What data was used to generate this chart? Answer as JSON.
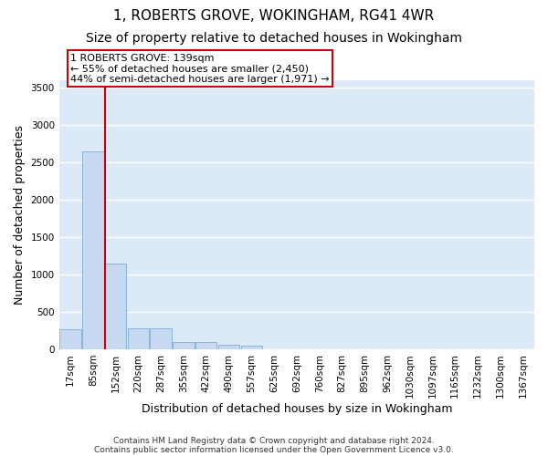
{
  "title": "1, ROBERTS GROVE, WOKINGHAM, RG41 4WR",
  "subtitle": "Size of property relative to detached houses in Wokingham",
  "xlabel": "Distribution of detached houses by size in Wokingham",
  "ylabel": "Number of detached properties",
  "footnote1": "Contains HM Land Registry data © Crown copyright and database right 2024.",
  "footnote2": "Contains public sector information licensed under the Open Government Licence v3.0.",
  "categories": [
    "17sqm",
    "85sqm",
    "152sqm",
    "220sqm",
    "287sqm",
    "355sqm",
    "422sqm",
    "490sqm",
    "557sqm",
    "625sqm",
    "692sqm",
    "760sqm",
    "827sqm",
    "895sqm",
    "962sqm",
    "1030sqm",
    "1097sqm",
    "1165sqm",
    "1232sqm",
    "1300sqm",
    "1367sqm"
  ],
  "values": [
    270,
    2650,
    1150,
    275,
    275,
    100,
    95,
    55,
    50,
    0,
    0,
    0,
    0,
    0,
    0,
    0,
    0,
    0,
    0,
    0,
    0
  ],
  "bar_color": "#c6d9f0",
  "bar_edge_color": "#7bafd4",
  "background_color": "#dce9f7",
  "grid_color": "#ffffff",
  "annotation_line1": "1 ROBERTS GROVE: 139sqm",
  "annotation_line2": "← 55% of detached houses are smaller (2,450)",
  "annotation_line3": "44% of semi-detached houses are larger (1,971) →",
  "annotation_box_color": "#cc0000",
  "red_line_x": 1.55,
  "ylim": [
    0,
    3600
  ],
  "yticks": [
    0,
    500,
    1000,
    1500,
    2000,
    2500,
    3000,
    3500
  ],
  "title_fontsize": 11,
  "subtitle_fontsize": 10,
  "axis_label_fontsize": 9,
  "tick_fontsize": 7.5,
  "annotation_fontsize": 8,
  "footnote_fontsize": 6.5
}
